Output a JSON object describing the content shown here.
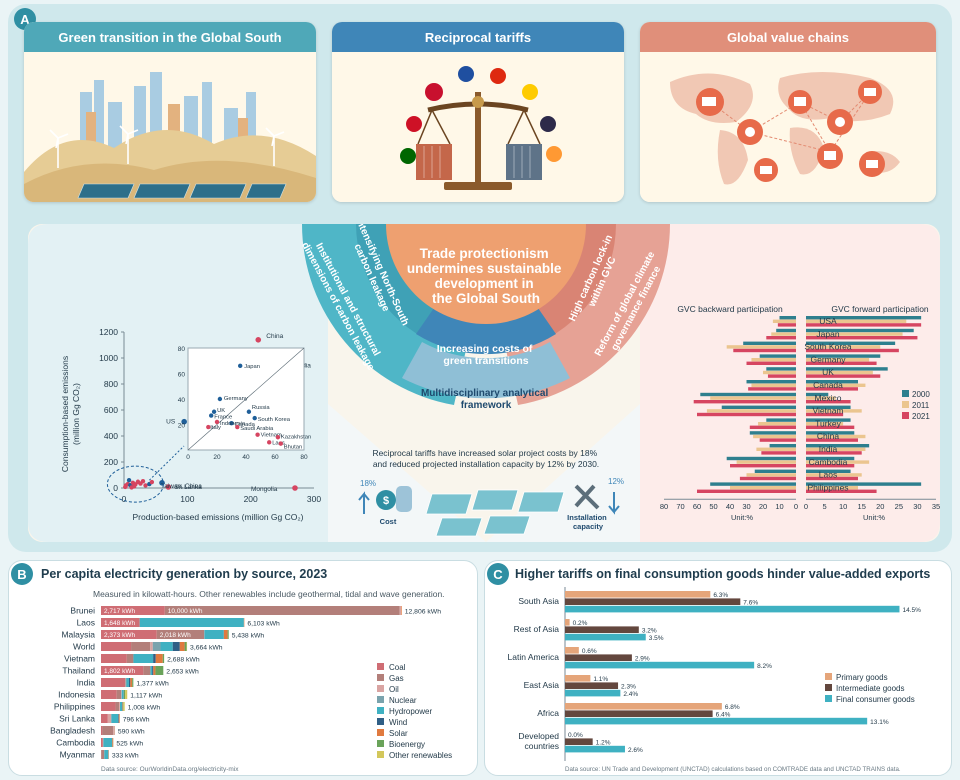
{
  "panelA": {
    "badge": "A",
    "cards": [
      {
        "title": "Green transition in the Global South",
        "color": "#4fa8b8"
      },
      {
        "title": "Reciprocal tariffs",
        "color": "#3f86b8"
      },
      {
        "title": "Global value chains",
        "color": "#e08f7a"
      }
    ],
    "center": {
      "title_lines": [
        "Trade protectionism",
        "undermines sustainable",
        "development in",
        "the Global South"
      ],
      "arc_left_outer_lines": [
        "Institutional and structural",
        "dimensions of carbon leakage"
      ],
      "arc_left_inner_lines": [
        "Intensifying North-South",
        "carbon leakage"
      ],
      "arc_right_inner_lines": [
        "High carbon lock-in",
        "within GVC"
      ],
      "arc_right_outer_lines": [
        "Reform of global climate",
        "governance finance"
      ],
      "arc_bottom_inner_lines": [
        "Increasing costs of",
        "green transitions"
      ],
      "arc_bottom_outer_lines": [
        "Multidisciplinary analytical",
        "framework"
      ]
    },
    "solar": {
      "text_lines": [
        "Reciprocal tariffs have increased solar project costs by 18%",
        "and reduced projected installation capacity by 12% by 2030."
      ],
      "cost_pct": "18%",
      "cost_label": "Cost",
      "capacity_pct": "12%",
      "capacity_label_lines": [
        "Installation",
        "capacity"
      ]
    },
    "scatter": {
      "ylabel_lines": [
        "Consumption-based emissions",
        "(million Gg CO₂)"
      ],
      "xlabel": "Production-based emissions (million Gg CO₂)",
      "yticks": [
        "1200",
        "1000",
        "800",
        "600",
        "400",
        "200",
        "0"
      ],
      "xticks": [
        "0",
        "100",
        "200",
        "300"
      ],
      "inset_yticks": [
        "80",
        "60",
        "40",
        "20"
      ],
      "inset_xticks": [
        "0",
        "20",
        "40",
        "60",
        "80"
      ],
      "labels": {
        "china": "China",
        "india": "India",
        "usa": "US",
        "taiwan": "Taiwan, China",
        "srilanka": "Sri Lanka",
        "mongolia": "Mongolia",
        "japan": "Japan",
        "germany": "Germany",
        "uk": "UK",
        "france": "France",
        "russia": "Russia",
        "southkorea": "South Korea",
        "canada": "Canada",
        "saudi": "Saudi Arabia",
        "indonesia": "Indonesia",
        "vietnam": "Vietnam",
        "kazakhstan": "Kazakhstan",
        "laos": "Laos",
        "bhutan": "Bhutan",
        "italy": "Italy"
      },
      "colors": {
        "developed": "#1f5f99",
        "developing": "#d64561"
      }
    },
    "gvc": {
      "backward_title": "GVC backward participation",
      "forward_title": "GVC forward participation",
      "countries": [
        "USA",
        "Japan",
        "South Korea",
        "Germany",
        "UK",
        "Canada",
        "Mexico",
        "Vietnam",
        "Turkey",
        "China",
        "India",
        "Cambodia",
        "Laos",
        "Philippines"
      ],
      "backward_ticks": [
        "80",
        "70",
        "60",
        "50",
        "40",
        "30",
        "20",
        "10",
        "0"
      ],
      "forward_ticks": [
        "0",
        "5",
        "10",
        "15",
        "20",
        "25",
        "30",
        "35"
      ],
      "unit_label": "Unit:%",
      "legend": [
        "2000",
        "2011",
        "2021"
      ],
      "colors": [
        "#2e7f8e",
        "#ebc58f",
        "#d64561"
      ],
      "chart_data": {
        "type": "bar",
        "categories": [
          "USA",
          "Japan",
          "South Korea",
          "Germany",
          "UK",
          "Canada",
          "Mexico",
          "Vietnam",
          "Turkey",
          "China",
          "India",
          "Cambodia",
          "Laos",
          "Philippines"
        ],
        "backward": [
          {
            "name": "2000",
            "values": [
              10,
              12,
              32,
              22,
              18,
              30,
              58,
              45,
              18,
              28,
              16,
              42,
              25,
              52
            ]
          },
          {
            "name": "2011",
            "values": [
              14,
              15,
              42,
              27,
              20,
              27,
              52,
              54,
              23,
              26,
              24,
              36,
              30,
              40
            ]
          },
          {
            "name": "2021",
            "values": [
              11,
              18,
              38,
              30,
              17,
              29,
              62,
              60,
              28,
              22,
              21,
              40,
              34,
              60
            ]
          }
        ],
        "forward": [
          {
            "name": "2000",
            "values": [
              31,
              29,
              24,
              20,
              22,
              14,
              6,
              12,
              12,
              13,
              17,
              13,
              12,
              31
            ]
          },
          {
            "name": "2011",
            "values": [
              27,
              26,
              20,
              17,
              18,
              16,
              8,
              15,
              10,
              16,
              16,
              17,
              15,
              14
            ]
          },
          {
            "name": "2021",
            "values": [
              31,
              30,
              25,
              19,
              20,
              14,
              12,
              10,
              13,
              14,
              15,
              13,
              14,
              19
            ]
          }
        ],
        "xlim_backward": [
          0,
          80
        ],
        "xlim_forward": [
          0,
          35
        ]
      }
    }
  },
  "panelB": {
    "badge": "B",
    "title": "Per capita electricity generation by source, 2023",
    "subtitle": "Measured in kilowatt-hours. Other renewables include geothermal, tidal and wave generation.",
    "source": "Data source: OurWorldinData.org/electricity-mix",
    "sources": [
      "Coal",
      "Gas",
      "Oil",
      "Nuclear",
      "Hydropower",
      "Wind",
      "Solar",
      "Bioenergy",
      "Other renewables"
    ],
    "source_colors": [
      "#cf6d74",
      "#b37f7a",
      "#d9a4a2",
      "#7aa3ad",
      "#3fb1c2",
      "#305f86",
      "#e07a3f",
      "#6aa35a",
      "#d3c75b"
    ],
    "chart_data": {
      "type": "bar",
      "stacked": true,
      "unit": "kWh",
      "categories": [
        "Brunei",
        "Laos",
        "Malaysia",
        "World",
        "Vietnam",
        "Thailand",
        "India",
        "Indonesia",
        "Philippines",
        "Sri Lanka",
        "Bangladesh",
        "Cambodia",
        "Myanmar"
      ],
      "totals": [
        12806,
        6103,
        5438,
        3664,
        2688,
        2653,
        1377,
        1117,
        1008,
        796,
        590,
        525,
        333
      ],
      "total_labels": [
        "12,806 kWh",
        "6,103 kWh",
        "5,438 kWh",
        "3,664 kWh",
        "2,688 kWh",
        "2,653 kWh",
        "1,377 kWh",
        "1,117 kWh",
        "1,008 kWh",
        "796 kWh",
        "590 kWh",
        "525 kWh",
        "333 kWh"
      ],
      "segments": [
        [
          2717,
          10000,
          60,
          0,
          0,
          0,
          29,
          0,
          0
        ],
        [
          1648,
          0,
          0,
          0,
          4436,
          0,
          19,
          0,
          0
        ],
        [
          2373,
          2018,
          10,
          0,
          830,
          0,
          160,
          47,
          0
        ],
        [
          1280,
          815,
          110,
          330,
          520,
          300,
          205,
          84,
          20
        ],
        [
          1100,
          280,
          0,
          0,
          840,
          110,
          300,
          58,
          0
        ],
        [
          1802,
          300,
          5,
          0,
          70,
          50,
          90,
          336,
          0
        ],
        [
          1030,
          23,
          0,
          36,
          100,
          58,
          80,
          50,
          0
        ],
        [
          670,
          190,
          20,
          0,
          90,
          2,
          5,
          50,
          90
        ],
        [
          620,
          150,
          40,
          0,
          90,
          12,
          20,
          16,
          60
        ],
        [
          290,
          0,
          150,
          0,
          290,
          30,
          30,
          6,
          0
        ],
        [
          60,
          460,
          55,
          0,
          5,
          0,
          10,
          0,
          0
        ],
        [
          80,
          0,
          20,
          0,
          380,
          0,
          40,
          5,
          0
        ],
        [
          8,
          130,
          2,
          0,
          175,
          0,
          18,
          0,
          0
        ]
      ],
      "segment_labels": [
        [
          "2,717 kWh",
          "10,000 kWh"
        ],
        [
          "1,648 kWh",
          "4,436 kWh"
        ],
        [
          "2,373 kWh",
          "2,018 kWh"
        ],
        [],
        [],
        [
          "1,802 kWh"
        ],
        [],
        [],
        [],
        [],
        [],
        [],
        []
      ],
      "xlim": [
        0,
        13200
      ]
    }
  },
  "panelC": {
    "badge": "C",
    "title": "Higher tariffs on final consumption goods hinder value-added exports",
    "source": "Data source: UN Trade and Development (UNCTAD) calculations based on COMTRADE data and UNCTAD TRAINS data.",
    "legend": [
      "Primary goods",
      "Intermediate goods",
      "Final consumer goods"
    ],
    "colors": [
      "#e5a57a",
      "#63473e",
      "#3fb1c2"
    ],
    "chart_data": {
      "type": "bar",
      "unit": "%",
      "categories": [
        "South Asia",
        "Rest of Asia",
        "Latin America",
        "East Asia",
        "Africa",
        "Developed countries"
      ],
      "series": [
        {
          "name": "Primary goods",
          "values": [
            6.3,
            0.2,
            0.6,
            1.1,
            6.8,
            0.0
          ]
        },
        {
          "name": "Intermediate goods",
          "values": [
            7.6,
            3.2,
            2.9,
            2.3,
            6.4,
            1.2
          ]
        },
        {
          "name": "Final consumer goods",
          "values": [
            14.5,
            3.5,
            8.2,
            2.4,
            13.1,
            2.6
          ]
        }
      ],
      "value_labels": [
        [
          "6.3%",
          "0.2%",
          "0.6%",
          "1.1%",
          "6.8%",
          "0.0%"
        ],
        [
          "7.6%",
          "3.2%",
          "2.9%",
          "2.3%",
          "6.4%",
          "1.2%"
        ],
        [
          "14.5%",
          "3.5%",
          "8.2%",
          "2.4%",
          "13.1%",
          "2.6%"
        ]
      ],
      "category_lines": [
        [
          "South Asia"
        ],
        [
          "Rest of Asia"
        ],
        [
          "Latin America"
        ],
        [
          "East Asia"
        ],
        [
          "Africa"
        ],
        [
          "Developed",
          "countries"
        ]
      ],
      "xlim": [
        0,
        15
      ]
    }
  }
}
